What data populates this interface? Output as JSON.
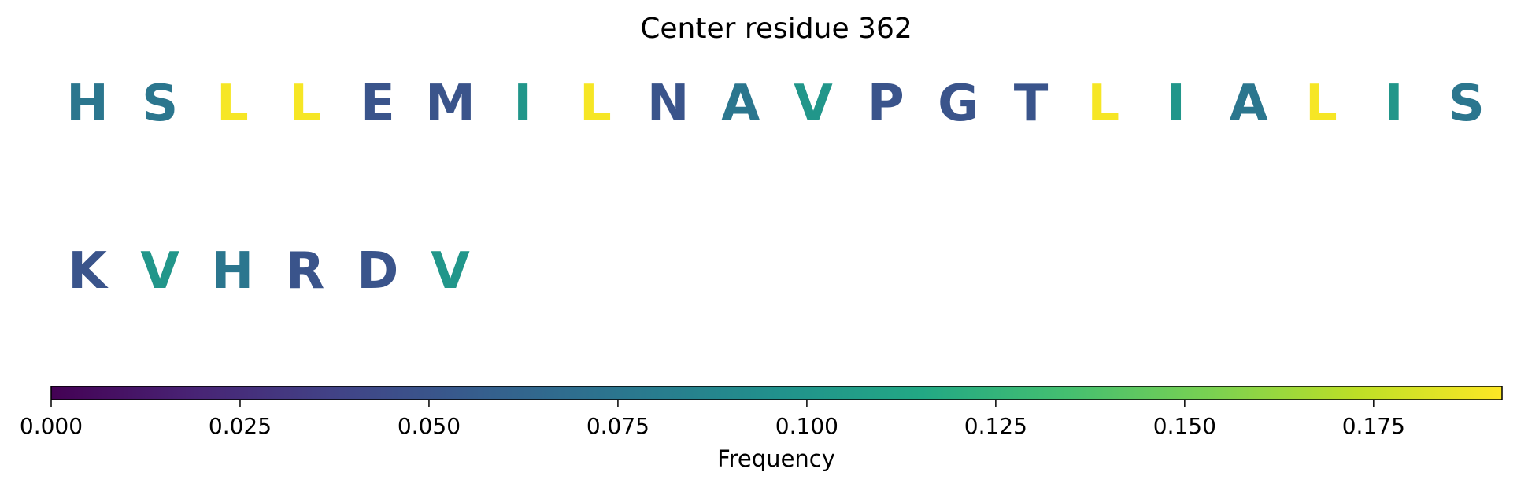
{
  "chart_data": {
    "type": "sequence-logo",
    "title": "Center residue 362",
    "residues": [
      {
        "letter": "H",
        "value": 0.075
      },
      {
        "letter": "S",
        "value": 0.075
      },
      {
        "letter": "L",
        "value": 0.19
      },
      {
        "letter": "L",
        "value": 0.19
      },
      {
        "letter": "E",
        "value": 0.05
      },
      {
        "letter": "M",
        "value": 0.05
      },
      {
        "letter": "I",
        "value": 0.1
      },
      {
        "letter": "L",
        "value": 0.19
      },
      {
        "letter": "N",
        "value": 0.05
      },
      {
        "letter": "A",
        "value": 0.075
      },
      {
        "letter": "V",
        "value": 0.1
      },
      {
        "letter": "P",
        "value": 0.05
      },
      {
        "letter": "G",
        "value": 0.05
      },
      {
        "letter": "T",
        "value": 0.05
      },
      {
        "letter": "L",
        "value": 0.19
      },
      {
        "letter": "I",
        "value": 0.1
      },
      {
        "letter": "A",
        "value": 0.075
      },
      {
        "letter": "L",
        "value": 0.19
      },
      {
        "letter": "I",
        "value": 0.1
      },
      {
        "letter": "S",
        "value": 0.075
      },
      {
        "letter": "K",
        "value": 0.05
      },
      {
        "letter": "V",
        "value": 0.1
      },
      {
        "letter": "H",
        "value": 0.075
      },
      {
        "letter": "R",
        "value": 0.05
      },
      {
        "letter": "D",
        "value": 0.05
      },
      {
        "letter": "V",
        "value": 0.1
      }
    ],
    "colorbar": {
      "label": "Frequency",
      "range": [
        0,
        0.192
      ],
      "colormap": "viridis",
      "ticks": [
        0,
        0.025,
        0.05,
        0.075,
        0.1,
        0.125,
        0.15,
        0.175
      ],
      "tick_labels": [
        "0.000",
        "0.025",
        "0.050",
        "0.075",
        "0.100",
        "0.125",
        "0.150",
        "0.175"
      ]
    }
  }
}
